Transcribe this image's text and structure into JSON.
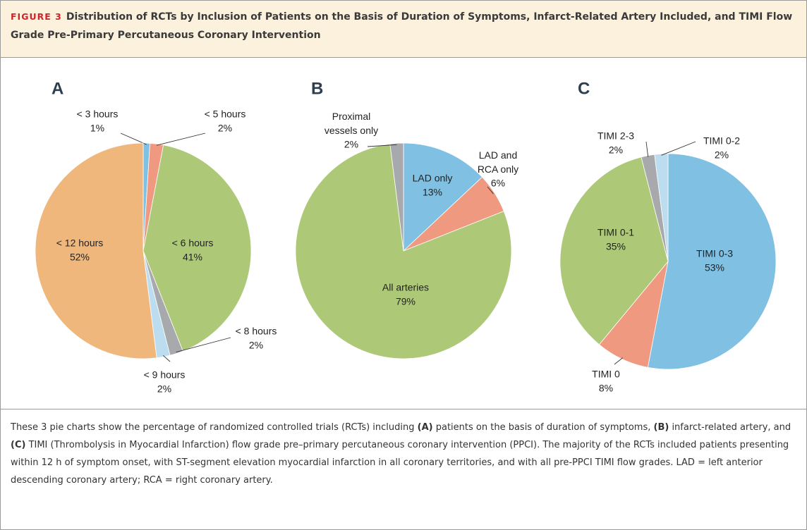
{
  "figure": {
    "label": "FIGURE 3",
    "title": "Distribution of RCTs by Inclusion of Patients on the Basis of Duration of Symptoms, Infarct-Related Artery Included, and TIMI Flow Grade Pre-Primary Percutaneous Coronary Intervention",
    "caption": [
      "These 3 pie charts show the percentage of randomized controlled trials (RCTs) including ",
      "(A)",
      " patients on the basis of duration of symptoms, ",
      "(B)",
      " infarct-related artery, and ",
      "(C)",
      " TIMI (Thrombolysis in Myocardial Infarction) flow grade pre–primary percutaneous coronary intervention (PPCI). The majority of the RCTs included patients presenting within 12 h of symptom onset, with ST-segment elevation myocardial infarction in all coronary territories, and with all pre-PPCI TIMI flow grades. LAD = left anterior descending coronary artery; RCA = right coronary artery."
    ]
  },
  "chart_data": [
    {
      "type": "pie",
      "title": "A",
      "categories": [
        "< 3 hours",
        "< 5 hours",
        "< 6 hours",
        "< 8 hours",
        "< 9 hours",
        "< 12 hours"
      ],
      "values": [
        1,
        2,
        41,
        2,
        2,
        52
      ],
      "value_labels": [
        "1%",
        "2%",
        "41%",
        "2%",
        "2%",
        "52%"
      ],
      "colors": [
        "#7fc0e3",
        "#ef9a80",
        "#adc978",
        "#a7a9ac",
        "#bcdcef",
        "#f0b77d"
      ]
    },
    {
      "type": "pie",
      "title": "B",
      "categories": [
        "LAD only",
        "LAD and\nRCA only",
        "All arteries",
        "Proximal\nvessels only"
      ],
      "values": [
        13,
        6,
        79,
        2
      ],
      "value_labels": [
        "13%",
        "6%",
        "79%",
        "2%"
      ],
      "colors": [
        "#7fc0e3",
        "#ef9a80",
        "#adc978",
        "#a7a9ac"
      ]
    },
    {
      "type": "pie",
      "title": "C",
      "categories": [
        "TIMI 0-3",
        "TIMI 0",
        "TIMI 0-1",
        "TIMI 2-3",
        "TIMI 0-2"
      ],
      "values": [
        53,
        8,
        35,
        2,
        2
      ],
      "value_labels": [
        "53%",
        "8%",
        "35%",
        "2%",
        "2%"
      ],
      "colors": [
        "#7fc0e3",
        "#ef9a80",
        "#adc978",
        "#a7a9ac",
        "#bcdcef"
      ]
    }
  ]
}
